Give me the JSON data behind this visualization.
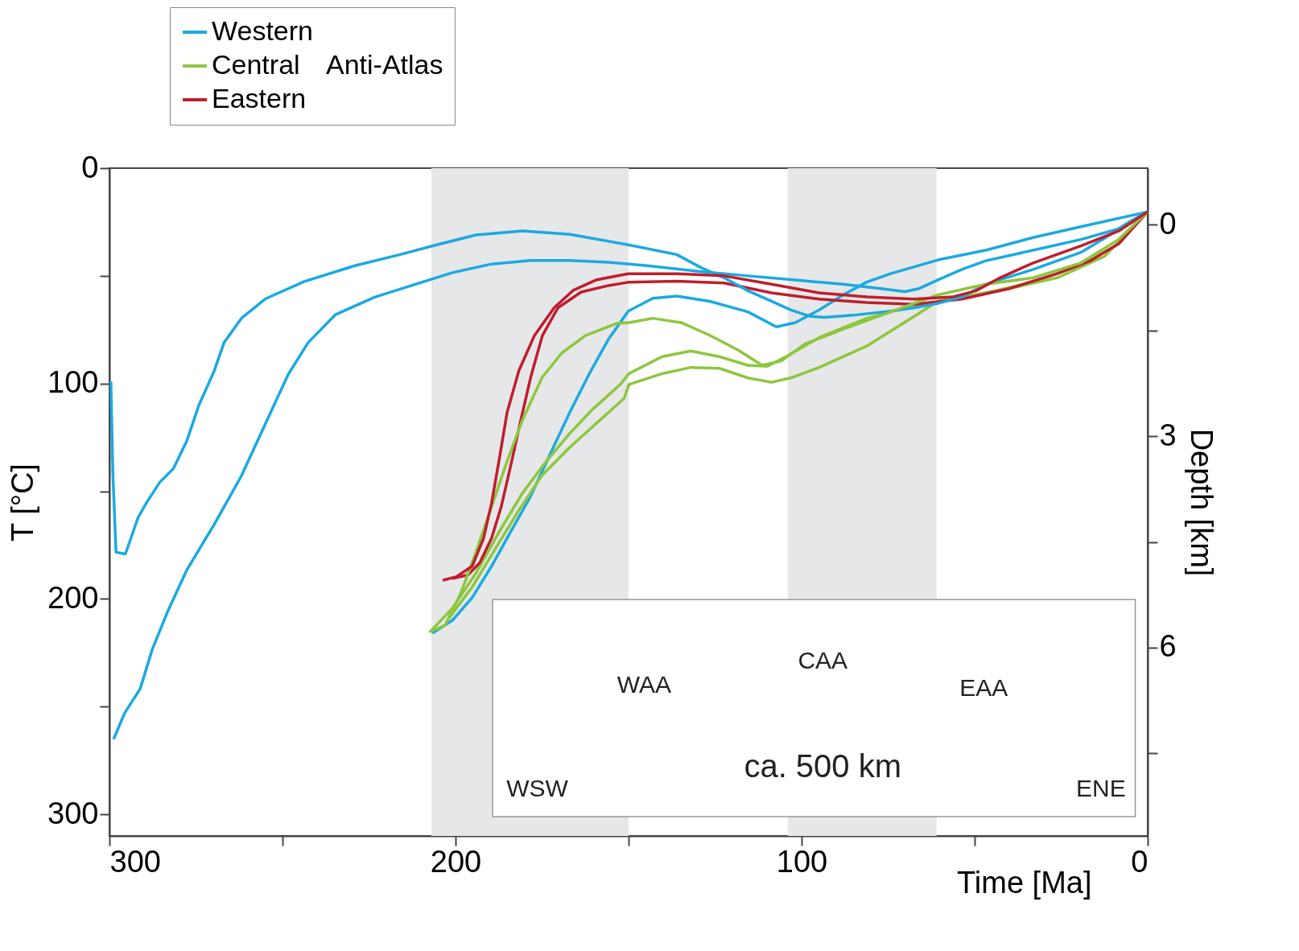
{
  "chart_data": {
    "type": "line",
    "xlabel": "Time [Ma]",
    "ylabel": "T [°C]",
    "y2label": "Depth [km]",
    "legend_title": "Anti-Atlas",
    "xlim": [
      300,
      0
    ],
    "xticks": [
      300,
      {
        "value": 250,
        "label": null
      },
      200,
      {
        "value": 150,
        "label": null
      },
      100,
      {
        "value": 50,
        "label": null
      },
      0
    ],
    "ylim": [
      310,
      0
    ],
    "yticks": [
      0,
      {
        "value": 50,
        "label": null
      },
      100,
      {
        "value": 150,
        "label": null
      },
      200,
      {
        "value": 250,
        "label": null
      },
      300
    ],
    "y2lim": [
      8.67,
      -0.8
    ],
    "y2ticks": [
      0,
      {
        "value": 1.5,
        "label": null
      },
      3,
      {
        "value": 4.5,
        "label": null
      },
      6,
      {
        "value": 7.5,
        "label": null
      }
    ],
    "grid": false,
    "legend": "top left",
    "line_style": "solid",
    "marker": "none",
    "bands": [
      {
        "axis": "x",
        "from": 207,
        "to": 150,
        "color": "#e6e7e8"
      },
      {
        "axis": "x",
        "from": 104,
        "to": 61,
        "color": "#e6e7e8"
      }
    ],
    "series": [
      {
        "name": "Western",
        "color": "#1ba9e1",
        "x": [
          299.6,
          299.0,
          298.1,
          295.4,
          291.7,
          289.4,
          285.5,
          281.5,
          277.6,
          274.2,
          269.7,
          266.9,
          261.8,
          255.0,
          243.7,
          229.1,
          216.7,
          205.4,
          194.1,
          180.6,
          167.0,
          150.1,
          136.1,
          129.3,
          122.4,
          115.5,
          108.7,
          103.2,
          97.7,
          93.5,
          85.3,
          74.3,
          67.4,
          60.6,
          53.7,
          46.8,
          33.1,
          19.3,
          11.1,
          5.6,
          0.1
        ],
        "values": [
          99,
          142.6,
          178.3,
          179.1,
          162.1,
          155.6,
          145.9,
          139.4,
          126.4,
          110.2,
          94.0,
          81.0,
          69.6,
          60.7,
          52.6,
          45.3,
          40.4,
          35.6,
          31.0,
          29.1,
          30.7,
          35.6,
          40.1,
          46.0,
          50.9,
          56.9,
          61.8,
          65.8,
          68.7,
          69.3,
          68.3,
          66.4,
          64.8,
          62.8,
          59.8,
          53.9,
          47.0,
          39.1,
          31.2,
          25.2,
          20.3
        ]
      },
      {
        "name": "Central",
        "color": "#8dc63f",
        "x": [
          207.6,
          203.1,
          198.6,
          194.1,
          189.6,
          185.1,
          180.6,
          175.0,
          169.3,
          162.5,
          153.5,
          149.9,
          143.0,
          134.8,
          126.5,
          118.3,
          111.4,
          105.9,
          99.0,
          88.0,
          74.3,
          60.6,
          46.8,
          33.1,
          19.3,
          8.4,
          0.1
        ],
        "values": [
          215.3,
          212.4,
          197.8,
          178.3,
          157.2,
          136.1,
          116.7,
          97.2,
          85.8,
          77.7,
          72.1,
          71.7,
          69.7,
          71.7,
          77.6,
          84.5,
          91.5,
          89.5,
          81.6,
          74.7,
          66.7,
          58.8,
          53.9,
          50.9,
          44.0,
          33.1,
          20.3
        ]
      },
      {
        "name": "Eastern",
        "color": "#be1e2d",
        "x": [
          203.7,
          199.8,
          195.2,
          191.9,
          189.6,
          187.3,
          185.1,
          181.7,
          177.2,
          171.5,
          165.9,
          159.2,
          150.1,
          136.1,
          122.4,
          108.7,
          94.9,
          81.2,
          67.4,
          56.4,
          49.6,
          42.7,
          33.1,
          19.3,
          8.4,
          0.1
        ],
        "values": [
          191.3,
          189.7,
          184.8,
          171.8,
          155.6,
          134.5,
          113.4,
          94.0,
          77.7,
          64.8,
          56.6,
          51.8,
          49.0,
          49.0,
          50.0,
          53.9,
          57.9,
          59.8,
          60.8,
          59.8,
          56.9,
          50.9,
          44.0,
          36.1,
          29.2,
          20.3
        ]
      },
      {
        "color": "#1ba9e1",
        "x": [
          298.8,
          295.6,
          291.1,
          287.7,
          283.2,
          277.6,
          269.7,
          261.8,
          253.9,
          248.3,
          242.6,
          234.7,
          223.4,
          212.2,
          200.9,
          189.6,
          178.3,
          167.0,
          155.8,
          144.5,
          129.3,
          115.5,
          101.8,
          88.0,
          77.0,
          70.2,
          66.1,
          60.6,
          53.7,
          46.8,
          33.1,
          19.3,
          8.4,
          0.1
        ],
        "values": [
          265.1,
          252.9,
          241.6,
          223.7,
          205.9,
          186.4,
          165.3,
          142.6,
          115.0,
          95.6,
          81.0,
          68.0,
          59.9,
          54.2,
          48.5,
          44.5,
          42.9,
          42.9,
          43.7,
          45.3,
          48.0,
          50.0,
          51.9,
          53.9,
          55.9,
          57.3,
          55.9,
          51.9,
          47.0,
          43.0,
          38.1,
          33.1,
          28.2,
          20.3
        ]
      },
      {
        "color": "#1ba9e1",
        "x": [
          206.7,
          200.9,
          195.2,
          189.6,
          184.0,
          178.3,
          172.7,
          167.0,
          161.4,
          155.8,
          150.1,
          143.0,
          136.1,
          126.5,
          115.5,
          107.3,
          101.8,
          94.9,
          88.0,
          81.2,
          74.3,
          60.6,
          46.8,
          33.1,
          19.3,
          0.1
        ],
        "values": [
          215.9,
          209.9,
          199.4,
          184.8,
          168.6,
          152.3,
          132.9,
          113.4,
          95.6,
          79.4,
          66.4,
          60.4,
          59.4,
          61.8,
          66.7,
          73.7,
          71.7,
          65.8,
          58.8,
          52.9,
          49.0,
          42.6,
          38.1,
          32.2,
          27.2,
          20.3
        ]
      },
      {
        "color": "#8dc63f",
        "x": [
          207.1,
          200.9,
          194.1,
          187.3,
          180.6,
          173.8,
          167.0,
          160.3,
          152.4,
          149.9,
          140.3,
          132.0,
          123.8,
          115.5,
          110.0,
          104.5,
          94.9,
          81.2,
          67.4,
          53.7,
          40.0,
          26.2,
          12.5,
          0.1
        ],
        "values": [
          214.8,
          204.3,
          188.0,
          168.6,
          150.7,
          136.1,
          123.1,
          111.8,
          100.4,
          95.4,
          87.5,
          84.9,
          87.5,
          91.5,
          92.0,
          87.5,
          78.6,
          69.7,
          63.8,
          59.8,
          55.9,
          50.9,
          41.0,
          20.3
        ]
      },
      {
        "color": "#8dc63f",
        "x": [
          202.0,
          195.2,
          188.5,
          181.7,
          175.0,
          167.0,
          159.2,
          151.3,
          149.9,
          140.3,
          132.0,
          123.8,
          115.5,
          108.7,
          103.2,
          94.9,
          81.2,
          67.4,
          60.6,
          46.8,
          33.1,
          19.3,
          8.4,
          0.1
        ],
        "values": [
          209.1,
          194.5,
          176.7,
          158.8,
          142.6,
          129.6,
          118.3,
          106.9,
          100.4,
          95.4,
          92.5,
          92.9,
          97.4,
          99.4,
          97.4,
          92.5,
          82.6,
          68.7,
          61.8,
          57.9,
          52.9,
          45.0,
          35.1,
          20.3
        ]
      },
      {
        "color": "#be1e2d",
        "x": [
          200.9,
          196.4,
          193.0,
          189.6,
          186.8,
          184.0,
          181.1,
          178.3,
          174.9,
          170.4,
          163.7,
          155.8,
          149.9,
          136.1,
          122.4,
          108.7,
          94.9,
          81.2,
          67.4,
          53.7,
          40.0,
          26.2,
          16.6,
          8.4,
          0.1
        ],
        "values": [
          190.5,
          188.8,
          183.2,
          171.8,
          157.2,
          137.7,
          116.7,
          97.2,
          77.7,
          64.8,
          57.5,
          54.5,
          52.9,
          52.5,
          53.3,
          57.9,
          60.8,
          62.4,
          63.2,
          60.8,
          55.9,
          49.0,
          43.0,
          35.1,
          20.3
        ]
      }
    ],
    "annotations": [
      "WAA",
      "CAA",
      "EAA",
      "ca. 500 km",
      "WSW",
      "ENE"
    ]
  }
}
